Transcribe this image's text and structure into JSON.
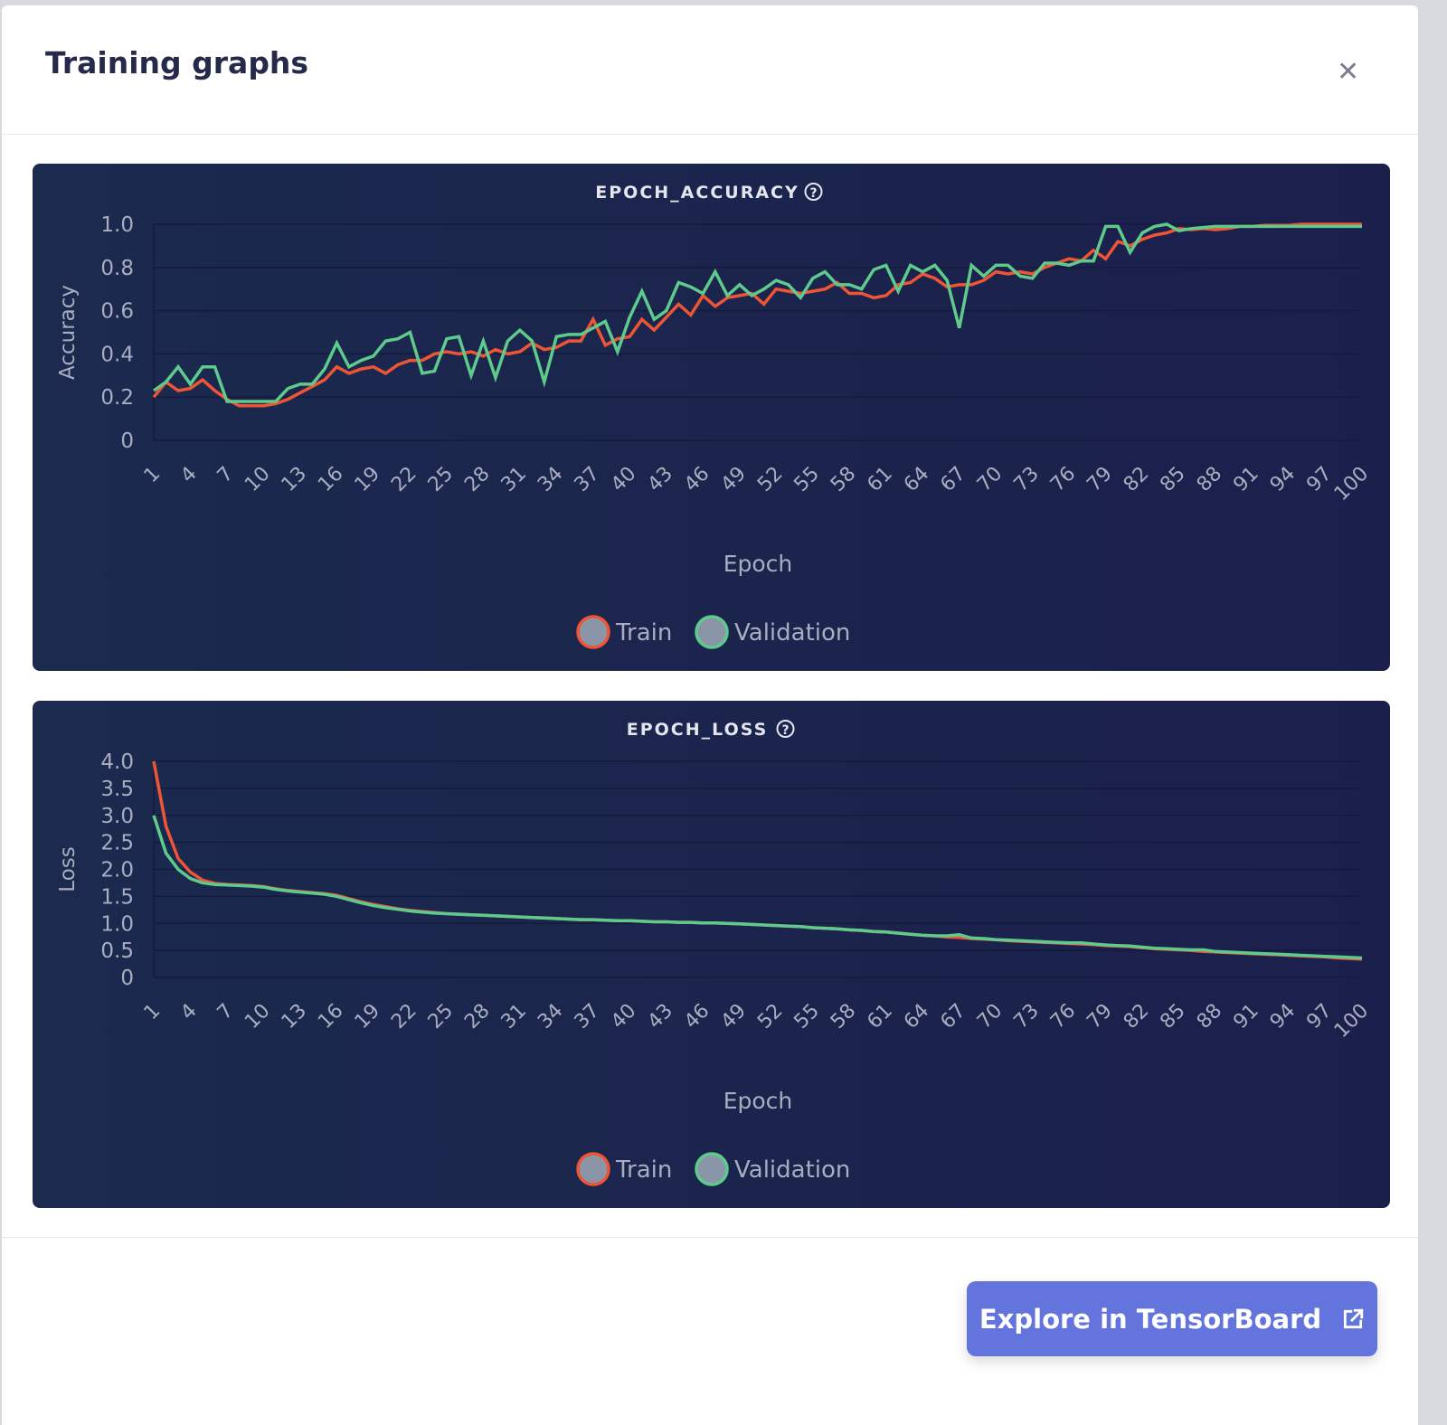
{
  "modal": {
    "title": "Training graphs",
    "close_icon": "close-icon",
    "button_label": "Explore in TensorBoard",
    "button_icon": "external-link-icon"
  },
  "colors": {
    "train": "#ee5535",
    "validation": "#5ecb8c",
    "button": "#6474dd",
    "card_bg": "#1b2550"
  },
  "chart_data": [
    {
      "type": "line",
      "title": "EPOCH_ACCURACY",
      "xlabel": "Epoch",
      "ylabel": "Accuracy",
      "ylim": [
        0,
        1
      ],
      "yticks": [
        0,
        0.2,
        0.4,
        0.6,
        0.8,
        1.0
      ],
      "ytick_labels": [
        "0",
        "0.2",
        "0.4",
        "0.6",
        "0.8",
        "1.0"
      ],
      "xlim": [
        1,
        100
      ],
      "xtick_step": 3,
      "legend": [
        "Train",
        "Validation"
      ],
      "legend_position": "bottom-center",
      "grid": true,
      "series": [
        {
          "name": "Train",
          "values": [
            0.2,
            0.27,
            0.23,
            0.24,
            0.28,
            0.23,
            0.19,
            0.16,
            0.16,
            0.16,
            0.17,
            0.19,
            0.22,
            0.25,
            0.28,
            0.34,
            0.31,
            0.33,
            0.34,
            0.31,
            0.35,
            0.37,
            0.37,
            0.4,
            0.41,
            0.4,
            0.41,
            0.39,
            0.42,
            0.4,
            0.41,
            0.45,
            0.42,
            0.43,
            0.46,
            0.46,
            0.56,
            0.44,
            0.47,
            0.48,
            0.56,
            0.51,
            0.57,
            0.63,
            0.58,
            0.67,
            0.62,
            0.66,
            0.67,
            0.68,
            0.63,
            0.7,
            0.69,
            0.68,
            0.69,
            0.7,
            0.73,
            0.68,
            0.68,
            0.66,
            0.67,
            0.72,
            0.73,
            0.77,
            0.75,
            0.71,
            0.72,
            0.72,
            0.74,
            0.78,
            0.77,
            0.78,
            0.77,
            0.8,
            0.82,
            0.84,
            0.83,
            0.88,
            0.84,
            0.92,
            0.9,
            0.93,
            0.95,
            0.96,
            0.98,
            0.975,
            0.98,
            0.975,
            0.98,
            0.99,
            0.99,
            0.995,
            0.995,
            0.995,
            1.0,
            1.0,
            1.0,
            1.0,
            1.0,
            1.0
          ]
        },
        {
          "name": "Validation",
          "values": [
            0.23,
            0.27,
            0.34,
            0.26,
            0.34,
            0.34,
            0.18,
            0.18,
            0.18,
            0.18,
            0.18,
            0.24,
            0.26,
            0.26,
            0.33,
            0.45,
            0.34,
            0.37,
            0.39,
            0.46,
            0.47,
            0.5,
            0.31,
            0.32,
            0.47,
            0.48,
            0.3,
            0.46,
            0.29,
            0.46,
            0.51,
            0.46,
            0.27,
            0.48,
            0.49,
            0.49,
            0.52,
            0.55,
            0.41,
            0.57,
            0.69,
            0.56,
            0.6,
            0.73,
            0.71,
            0.68,
            0.78,
            0.67,
            0.72,
            0.67,
            0.7,
            0.74,
            0.72,
            0.66,
            0.75,
            0.78,
            0.72,
            0.72,
            0.7,
            0.79,
            0.81,
            0.69,
            0.81,
            0.78,
            0.81,
            0.74,
            0.52,
            0.81,
            0.76,
            0.81,
            0.81,
            0.76,
            0.75,
            0.82,
            0.82,
            0.81,
            0.83,
            0.83,
            0.99,
            0.99,
            0.87,
            0.96,
            0.99,
            1.0,
            0.97,
            0.98,
            0.985,
            0.99,
            0.99,
            0.99,
            0.99,
            0.99,
            0.99,
            0.99,
            0.99,
            0.99,
            0.99,
            0.99,
            0.99,
            0.99
          ]
        }
      ]
    },
    {
      "type": "line",
      "title": "EPOCH_LOSS",
      "xlabel": "Epoch",
      "ylabel": "Loss",
      "ylim": [
        0,
        4
      ],
      "yticks": [
        0,
        0.5,
        1,
        1.5,
        2,
        2.5,
        3,
        3.5,
        4
      ],
      "ytick_labels": [
        "0",
        "0.5",
        "1.0",
        "1.5",
        "2.0",
        "2.5",
        "3.0",
        "3.5",
        "4.0"
      ],
      "xlim": [
        1,
        100
      ],
      "xtick_step": 3,
      "legend": [
        "Train",
        "Validation"
      ],
      "legend_position": "bottom-center",
      "grid": true,
      "series": [
        {
          "name": "Train",
          "values": [
            4.0,
            2.8,
            2.2,
            1.95,
            1.8,
            1.74,
            1.72,
            1.71,
            1.7,
            1.68,
            1.64,
            1.61,
            1.59,
            1.57,
            1.55,
            1.52,
            1.46,
            1.4,
            1.35,
            1.31,
            1.27,
            1.24,
            1.22,
            1.2,
            1.18,
            1.17,
            1.16,
            1.15,
            1.14,
            1.13,
            1.12,
            1.11,
            1.1,
            1.09,
            1.08,
            1.07,
            1.07,
            1.06,
            1.05,
            1.05,
            1.04,
            1.03,
            1.03,
            1.02,
            1.02,
            1.01,
            1.01,
            1.0,
            0.99,
            0.98,
            0.97,
            0.96,
            0.95,
            0.94,
            0.92,
            0.91,
            0.9,
            0.88,
            0.87,
            0.85,
            0.84,
            0.82,
            0.8,
            0.78,
            0.77,
            0.75,
            0.74,
            0.72,
            0.71,
            0.7,
            0.68,
            0.67,
            0.66,
            0.65,
            0.64,
            0.63,
            0.62,
            0.61,
            0.59,
            0.58,
            0.57,
            0.55,
            0.53,
            0.52,
            0.51,
            0.5,
            0.48,
            0.47,
            0.46,
            0.45,
            0.44,
            0.43,
            0.42,
            0.41,
            0.4,
            0.39,
            0.38,
            0.36,
            0.35,
            0.34
          ]
        },
        {
          "name": "Validation",
          "values": [
            3.0,
            2.3,
            2.0,
            1.83,
            1.75,
            1.72,
            1.71,
            1.7,
            1.69,
            1.67,
            1.63,
            1.6,
            1.58,
            1.56,
            1.54,
            1.5,
            1.44,
            1.38,
            1.33,
            1.29,
            1.26,
            1.23,
            1.21,
            1.19,
            1.18,
            1.17,
            1.16,
            1.15,
            1.14,
            1.13,
            1.12,
            1.11,
            1.1,
            1.09,
            1.08,
            1.07,
            1.07,
            1.06,
            1.05,
            1.05,
            1.04,
            1.03,
            1.03,
            1.02,
            1.02,
            1.01,
            1.01,
            1.0,
            0.99,
            0.98,
            0.97,
            0.96,
            0.95,
            0.94,
            0.92,
            0.91,
            0.9,
            0.88,
            0.87,
            0.85,
            0.84,
            0.82,
            0.8,
            0.78,
            0.77,
            0.77,
            0.79,
            0.73,
            0.72,
            0.7,
            0.69,
            0.68,
            0.67,
            0.66,
            0.65,
            0.64,
            0.64,
            0.62,
            0.6,
            0.59,
            0.58,
            0.56,
            0.54,
            0.53,
            0.52,
            0.51,
            0.51,
            0.48,
            0.47,
            0.46,
            0.45,
            0.44,
            0.43,
            0.42,
            0.41,
            0.4,
            0.39,
            0.38,
            0.37,
            0.36
          ]
        }
      ]
    }
  ]
}
